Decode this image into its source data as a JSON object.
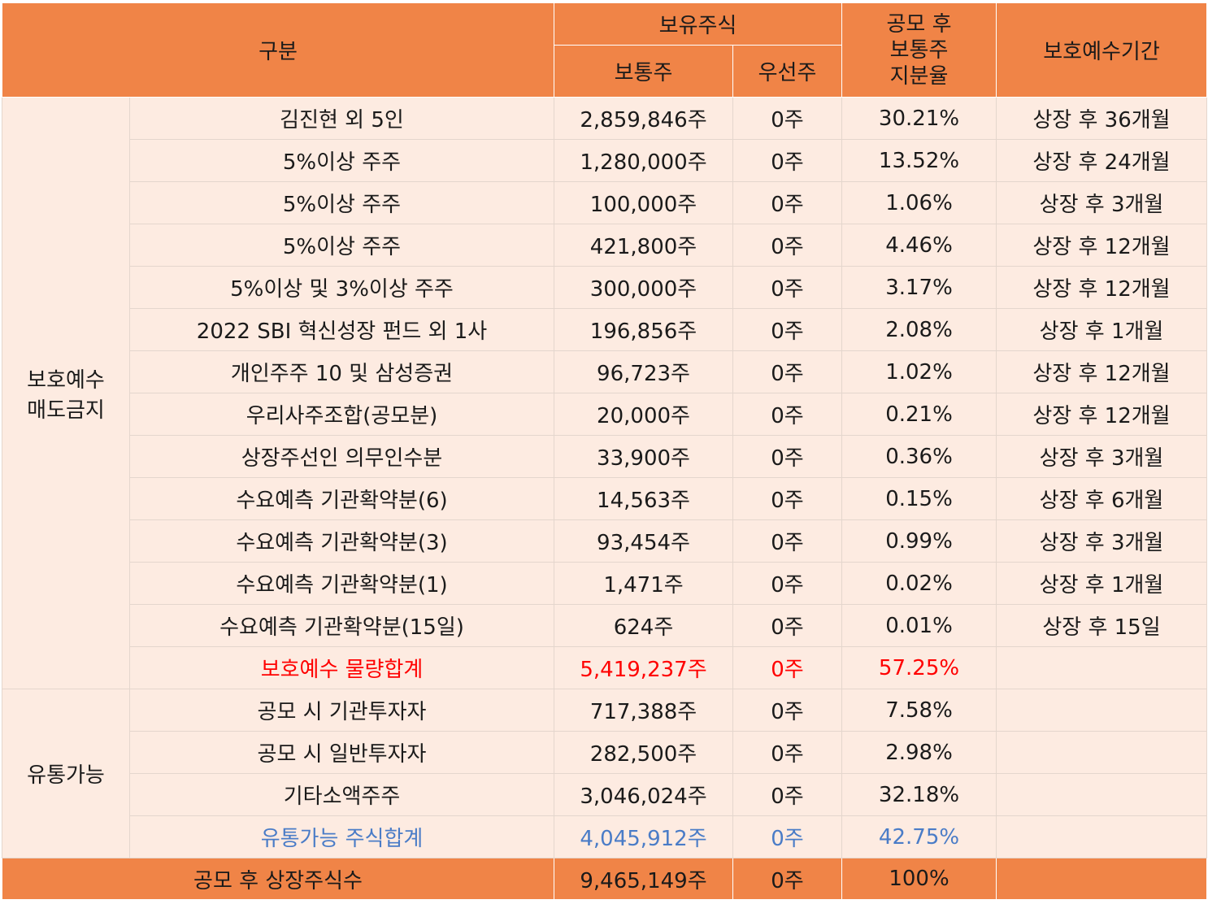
{
  "header": {
    "category": "구분",
    "holdings": "보유주식",
    "common": "보통주",
    "preferred": "우선주",
    "ratio_lines": [
      "공모 후",
      "보통주",
      "지분율"
    ],
    "lockup_period": "보호예수기간"
  },
  "groups": {
    "lockup_lines": [
      "보호예수",
      "매도금지"
    ],
    "tradable": "유통가능"
  },
  "lockup_rows": [
    {
      "name": "김진현 외 5인",
      "common": "2,859,846주",
      "preferred": "0주",
      "ratio": "30.21%",
      "period": "상장 후 36개월"
    },
    {
      "name": "5%이상 주주",
      "common": "1,280,000주",
      "preferred": "0주",
      "ratio": "13.52%",
      "period": "상장 후 24개월"
    },
    {
      "name": "5%이상 주주",
      "common": "100,000주",
      "preferred": "0주",
      "ratio": "1.06%",
      "period": "상장 후 3개월"
    },
    {
      "name": "5%이상 주주",
      "common": "421,800주",
      "preferred": "0주",
      "ratio": "4.46%",
      "period": "상장 후 12개월"
    },
    {
      "name": "5%이상 및 3%이상 주주",
      "common": "300,000주",
      "preferred": "0주",
      "ratio": "3.17%",
      "period": "상장 후 12개월"
    },
    {
      "name": "2022 SBI 혁신성장 펀드 외 1사",
      "common": "196,856주",
      "preferred": "0주",
      "ratio": "2.08%",
      "period": "상장 후 1개월"
    },
    {
      "name": "개인주주 10 및 삼성증권",
      "common": "96,723주",
      "preferred": "0주",
      "ratio": "1.02%",
      "period": "상장 후 12개월"
    },
    {
      "name": "우리사주조합(공모분)",
      "common": "20,000주",
      "preferred": "0주",
      "ratio": "0.21%",
      "period": "상장 후 12개월"
    },
    {
      "name": "상장주선인 의무인수분",
      "common": "33,900주",
      "preferred": "0주",
      "ratio": "0.36%",
      "period": "상장 후 3개월"
    },
    {
      "name": "수요예측 기관확약분(6)",
      "common": "14,563주",
      "preferred": "0주",
      "ratio": "0.15%",
      "period": "상장 후 6개월"
    },
    {
      "name": "수요예측 기관확약분(3)",
      "common": "93,454주",
      "preferred": "0주",
      "ratio": "0.99%",
      "period": "상장 후 3개월"
    },
    {
      "name": "수요예측 기관확약분(1)",
      "common": "1,471주",
      "preferred": "0주",
      "ratio": "0.02%",
      "period": "상장 후 1개월"
    },
    {
      "name": "수요예측 기관확약분(15일)",
      "common": "624주",
      "preferred": "0주",
      "ratio": "0.01%",
      "period": "상장 후 15일"
    }
  ],
  "lockup_total": {
    "name": "보호예수 물량합계",
    "common": "5,419,237주",
    "preferred": "0주",
    "ratio": "57.25%",
    "period": ""
  },
  "tradable_rows": [
    {
      "name": "공모 시 기관투자자",
      "common": "717,388주",
      "preferred": "0주",
      "ratio": "7.58%",
      "period": ""
    },
    {
      "name": "공모 시 일반투자자",
      "common": "282,500주",
      "preferred": "0주",
      "ratio": "2.98%",
      "period": ""
    },
    {
      "name": "기타소액주주",
      "common": "3,046,024주",
      "preferred": "0주",
      "ratio": "32.18%",
      "period": ""
    }
  ],
  "tradable_total": {
    "name": "유통가능 주식합계",
    "common": "4,045,912주",
    "preferred": "0주",
    "ratio": "42.75%",
    "period": ""
  },
  "grand_total": {
    "name": "공모 후 상장주식수",
    "common": "9,465,149주",
    "preferred": "0주",
    "ratio": "100%",
    "period": ""
  },
  "colors": {
    "header_bg": "#f08447",
    "row_bg": "#fdebe1",
    "lockup_total_text": "#ff0000",
    "tradable_total_text": "#4a7cc7"
  }
}
